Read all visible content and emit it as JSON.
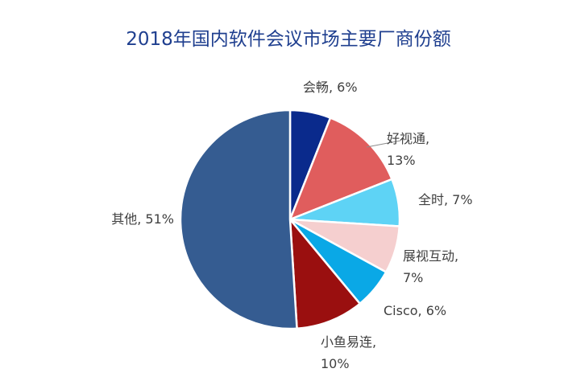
{
  "chart_data": {
    "type": "pie",
    "title": "2018年国内软件会议市场主要厂商份额",
    "unit": "%",
    "start_angle_deg": 0,
    "direction": "clockwise",
    "slices": [
      {
        "name": "会畅",
        "value": 6,
        "color": "#0a2a8c",
        "label_lines": [
          "会畅, 6%"
        ]
      },
      {
        "name": "好视通",
        "value": 13,
        "color": "#e05d5d",
        "label_lines": [
          "好视通,",
          "13%"
        ]
      },
      {
        "name": "全时",
        "value": 7,
        "color": "#5ed3f5",
        "label_lines": [
          "全时, 7%"
        ]
      },
      {
        "name": "展视互动",
        "value": 7,
        "color": "#f5cfcf",
        "label_lines": [
          "展视互动,",
          "7%"
        ]
      },
      {
        "name": "Cisco",
        "value": 6,
        "color": "#0aa8e6",
        "label_lines": [
          "Cisco, 6%"
        ]
      },
      {
        "name": "小鱼易连",
        "value": 10,
        "color": "#9a0f0f",
        "label_lines": [
          "小鱼易连,",
          "10%"
        ]
      },
      {
        "name": "其他",
        "value": 51,
        "color": "#355c91",
        "label_lines": [
          "其他, 51%"
        ]
      }
    ]
  }
}
